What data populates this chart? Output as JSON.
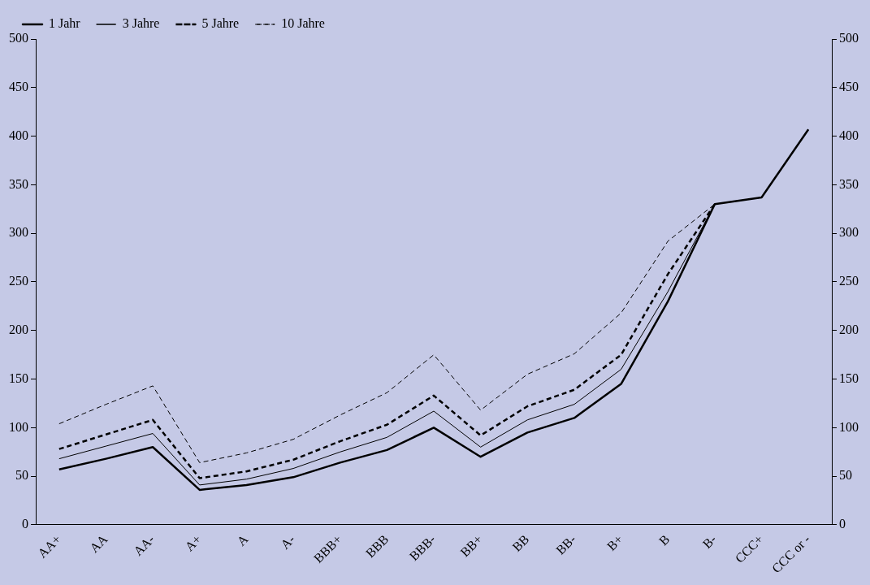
{
  "chart_data": {
    "type": "line",
    "categories": [
      "AA+",
      "AA",
      "AA-",
      "A+",
      "A",
      "A-",
      "BBB+",
      "BBB",
      "BBB-",
      "BB+",
      "BB",
      "BB-",
      "B+",
      "B",
      "B-",
      "CCC+",
      "CCC or -"
    ],
    "series": [
      {
        "name": "1 Jahr",
        "color": "#000000",
        "line_style": "solid",
        "values": [
          57,
          68,
          80,
          36,
          41,
          49,
          64,
          77,
          100,
          70,
          95,
          110,
          145,
          230,
          330,
          337,
          407
        ]
      },
      {
        "name": "3 Jahre",
        "color": "#000000",
        "line_style": "solid",
        "values": [
          68,
          81,
          94,
          41,
          47,
          58,
          75,
          90,
          117,
          80,
          108,
          124,
          160,
          240,
          330,
          null,
          null
        ]
      },
      {
        "name": "5 Jahre",
        "color": "#000000",
        "line_style": "dashed",
        "values": [
          78,
          93,
          108,
          48,
          55,
          67,
          86,
          103,
          133,
          92,
          122,
          139,
          175,
          258,
          330,
          null,
          null
        ]
      },
      {
        "name": "10 Jahre",
        "color": "#000000",
        "line_style": "dashed",
        "values": [
          104,
          124,
          143,
          64,
          74,
          88,
          113,
          136,
          175,
          118,
          155,
          176,
          218,
          292,
          330,
          null,
          null
        ]
      }
    ],
    "ylim": [
      0,
      500
    ],
    "yticks": [
      0,
      50,
      100,
      150,
      200,
      250,
      300,
      350,
      400,
      450,
      500
    ],
    "y2lim": [
      0,
      500
    ],
    "y2ticks": [
      0,
      50,
      100,
      150,
      200,
      250,
      300,
      350,
      400,
      450,
      500
    ],
    "grid": false,
    "legend": "top left",
    "marker": "none"
  }
}
